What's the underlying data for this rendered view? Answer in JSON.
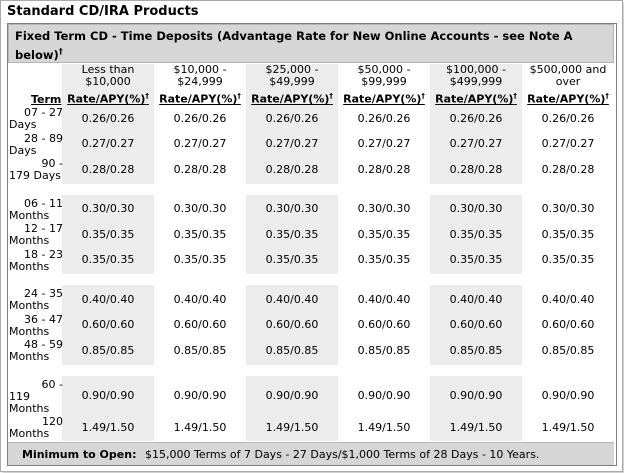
{
  "title": "Standard CD/IRA Products",
  "caption": "Fixed Term CD - Time Deposits (Advantage Rate for New Online Accounts - see Note A below)",
  "caption_note_mark": "†",
  "term_header": "Term",
  "rate_header": "Rate/APY(%)",
  "rate_note_mark": "†",
  "columns": [
    {
      "range_line1": "Less than",
      "range_line2": "$10,000"
    },
    {
      "range_line1": "$10,000 -",
      "range_line2": "$24,999"
    },
    {
      "range_line1": "$25,000 -",
      "range_line2": "$49,999"
    },
    {
      "range_line1": "$50,000 -",
      "range_line2": "$99,999"
    },
    {
      "range_line1": "$100,000 -",
      "range_line2": "$499,999"
    },
    {
      "range_line1": "$500,000 and",
      "range_line2": "over"
    }
  ],
  "groups": [
    {
      "rows": [
        {
          "term_line1": "07 - 27",
          "term_line2": "Days",
          "values": [
            "0.26/0.26",
            "0.26/0.26",
            "0.26/0.26",
            "0.26/0.26",
            "0.26/0.26",
            "0.26/0.26"
          ]
        },
        {
          "term_line1": "28 - 89",
          "term_line2": "Days",
          "values": [
            "0.27/0.27",
            "0.27/0.27",
            "0.27/0.27",
            "0.27/0.27",
            "0.27/0.27",
            "0.27/0.27"
          ]
        },
        {
          "term_line1": "90 -",
          "term_line2": "179 Days",
          "values": [
            "0.28/0.28",
            "0.28/0.28",
            "0.28/0.28",
            "0.28/0.28",
            "0.28/0.28",
            "0.28/0.28"
          ]
        }
      ]
    },
    {
      "rows": [
        {
          "term_line1": "06 - 11",
          "term_line2": "Months",
          "values": [
            "0.30/0.30",
            "0.30/0.30",
            "0.30/0.30",
            "0.30/0.30",
            "0.30/0.30",
            "0.30/0.30"
          ]
        },
        {
          "term_line1": "12 - 17",
          "term_line2": "Months",
          "values": [
            "0.35/0.35",
            "0.35/0.35",
            "0.35/0.35",
            "0.35/0.35",
            "0.35/0.35",
            "0.35/0.35"
          ]
        },
        {
          "term_line1": "18 - 23",
          "term_line2": "Months",
          "values": [
            "0.35/0.35",
            "0.35/0.35",
            "0.35/0.35",
            "0.35/0.35",
            "0.35/0.35",
            "0.35/0.35"
          ]
        }
      ]
    },
    {
      "rows": [
        {
          "term_line1": "24 - 35",
          "term_line2": "Months",
          "values": [
            "0.40/0.40",
            "0.40/0.40",
            "0.40/0.40",
            "0.40/0.40",
            "0.40/0.40",
            "0.40/0.40"
          ]
        },
        {
          "term_line1": "36 - 47",
          "term_line2": "Months",
          "values": [
            "0.60/0.60",
            "0.60/0.60",
            "0.60/0.60",
            "0.60/0.60",
            "0.60/0.60",
            "0.60/0.60"
          ]
        },
        {
          "term_line1": "48 - 59",
          "term_line2": "Months",
          "values": [
            "0.85/0.85",
            "0.85/0.85",
            "0.85/0.85",
            "0.85/0.85",
            "0.85/0.85",
            "0.85/0.85"
          ]
        }
      ]
    },
    {
      "rows": [
        {
          "term_line1": "60 -",
          "term_line2": "119",
          "term_line3": "Months",
          "values": [
            "0.90/0.90",
            "0.90/0.90",
            "0.90/0.90",
            "0.90/0.90",
            "0.90/0.90",
            "0.90/0.90"
          ]
        },
        {
          "term_line1": "120",
          "term_line2": "Months",
          "values": [
            "1.49/1.50",
            "1.49/1.50",
            "1.49/1.50",
            "1.49/1.50",
            "1.49/1.50",
            "1.49/1.50"
          ]
        }
      ]
    }
  ],
  "footer": {
    "label": "Minimum to Open:",
    "value": "$15,000 Terms of 7 Days - 27 Days/$1,000 Terms of 28 Days - 10 Years."
  }
}
